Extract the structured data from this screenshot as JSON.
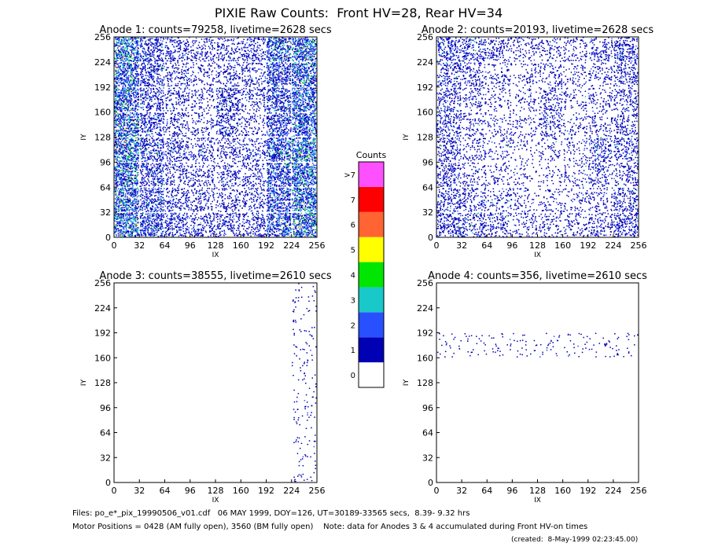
{
  "title": "PIXIE Raw Counts:  Front HV=28, Rear HV=34",
  "chart_data": [
    {
      "type": "heatmap",
      "title": "Anode 1: counts=79258, livetime=2628 secs",
      "x_label": "IX",
      "y_label": "IY",
      "xlim": [
        0,
        256
      ],
      "ylim": [
        0,
        256
      ],
      "xticks": [
        0,
        32,
        64,
        96,
        128,
        160,
        192,
        224,
        256
      ],
      "yticks": [
        0,
        32,
        64,
        96,
        128,
        160,
        192,
        224,
        256
      ],
      "values": [
        [
          1.6,
          0.7,
          0.4,
          0.3,
          0.3,
          0.4,
          1.2,
          1.6
        ],
        [
          1.5,
          0.6,
          0.3,
          0.2,
          0.3,
          0.3,
          0.9,
          1.4
        ],
        [
          1.4,
          0.5,
          0.3,
          0.2,
          0.6,
          0.3,
          0.8,
          1.3
        ],
        [
          1.5,
          0.6,
          0.3,
          0.2,
          0.5,
          0.2,
          0.8,
          1.4
        ],
        [
          1.6,
          0.7,
          0.4,
          0.3,
          0.3,
          0.3,
          1.2,
          1.8
        ],
        [
          1.5,
          0.6,
          0.3,
          0.3,
          0.3,
          0.3,
          1.0,
          1.5
        ],
        [
          1.5,
          0.7,
          0.4,
          0.3,
          0.3,
          0.3,
          1.0,
          1.5
        ],
        [
          1.8,
          0.9,
          0.5,
          0.4,
          0.4,
          0.4,
          1.1,
          1.6
        ]
      ]
    },
    {
      "type": "heatmap",
      "title": "Anode 2: counts=20193, livetime=2628 secs",
      "x_label": "IX",
      "y_label": "IY",
      "xlim": [
        0,
        256
      ],
      "ylim": [
        0,
        256
      ],
      "xticks": [
        0,
        32,
        64,
        96,
        128,
        160,
        192,
        224,
        256
      ],
      "yticks": [
        0,
        32,
        64,
        96,
        128,
        160,
        192,
        224,
        256
      ],
      "values": [
        [
          0.5,
          0.4,
          0.3,
          0.2,
          0.2,
          0.2,
          0.3,
          0.5
        ],
        [
          0.4,
          0.3,
          0.2,
          0.15,
          0.2,
          0.15,
          0.2,
          0.4
        ],
        [
          0.4,
          0.2,
          0.15,
          0.15,
          0.3,
          0.15,
          0.2,
          0.3
        ],
        [
          0.4,
          0.2,
          0.15,
          0.15,
          0.3,
          0.15,
          0.2,
          0.3
        ],
        [
          0.4,
          0.2,
          0.15,
          0.1,
          0.15,
          0.15,
          0.4,
          0.4
        ],
        [
          0.4,
          0.2,
          0.15,
          0.1,
          0.1,
          0.15,
          0.3,
          0.3
        ],
        [
          0.4,
          0.3,
          0.2,
          0.15,
          0.15,
          0.15,
          0.2,
          0.4
        ],
        [
          0.5,
          0.4,
          0.3,
          0.2,
          0.2,
          0.2,
          0.3,
          0.5
        ]
      ]
    },
    {
      "type": "heatmap",
      "title": "Anode 3: counts=38555, livetime=2610 secs",
      "x_label": "IX",
      "y_label": "IY",
      "xlim": [
        0,
        256
      ],
      "ylim": [
        0,
        256
      ],
      "xticks": [
        0,
        32,
        64,
        96,
        128,
        160,
        192,
        224,
        256
      ],
      "yticks": [
        0,
        32,
        64,
        96,
        128,
        160,
        192,
        224,
        256
      ],
      "values": [
        [
          0,
          0,
          0,
          0,
          0,
          0,
          0,
          0.05
        ],
        [
          0,
          0,
          0,
          0,
          0,
          0,
          0,
          0.05
        ],
        [
          0,
          0,
          0,
          0,
          0,
          0,
          0,
          0.05
        ],
        [
          0,
          0,
          0,
          0,
          0,
          0,
          0,
          0.05
        ],
        [
          0,
          0,
          0,
          0,
          0,
          0,
          0,
          0.05
        ],
        [
          0,
          0,
          0,
          0,
          0,
          0,
          0,
          0.05
        ],
        [
          0,
          0,
          0,
          0,
          0,
          0,
          0,
          0.05
        ],
        [
          0,
          0,
          0,
          0,
          0,
          0,
          0,
          0.05
        ]
      ]
    },
    {
      "type": "heatmap",
      "title": "Anode 4: counts=356, livetime=2610 secs",
      "x_label": "IX",
      "y_label": "IY",
      "xlim": [
        0,
        256
      ],
      "ylim": [
        0,
        256
      ],
      "xticks": [
        0,
        32,
        64,
        96,
        128,
        160,
        192,
        224,
        256
      ],
      "yticks": [
        0,
        32,
        64,
        96,
        128,
        160,
        192,
        224,
        256
      ],
      "values": [
        [
          0,
          0,
          0,
          0,
          0,
          0,
          0,
          0
        ],
        [
          0,
          0,
          0,
          0,
          0,
          0,
          0,
          0
        ],
        [
          0.05,
          0.05,
          0.05,
          0.05,
          0.05,
          0.05,
          0.05,
          0.05
        ],
        [
          0,
          0,
          0,
          0,
          0,
          0,
          0,
          0
        ],
        [
          0,
          0,
          0,
          0,
          0,
          0,
          0,
          0
        ],
        [
          0,
          0,
          0,
          0,
          0,
          0,
          0,
          0
        ],
        [
          0,
          0,
          0,
          0,
          0,
          0,
          0,
          0
        ],
        [
          0,
          0,
          0,
          0,
          0,
          0,
          0,
          0
        ]
      ]
    }
  ],
  "colorbar": {
    "title": "Counts",
    "ticks": [
      0,
      1,
      2,
      3,
      4,
      5,
      6,
      7,
      {
        "value": 8,
        "label": ">7"
      }
    ],
    "colors": [
      "#ffffff",
      "#0000b4",
      "#2850ff",
      "#19c8c8",
      "#00e600",
      "#ffff00",
      "#ff6432",
      "#ff0000",
      "#ff50ff"
    ]
  },
  "footer": [
    "Files: po_e*_pix_19990506_v01.cdf   06 MAY 1999, DOY=126, UT=30189-33565 secs,  8.39- 9.32 hrs",
    "Motor Positions = 0428 (AM fully open), 3560 (BM fully open)    Note: data for Anodes 3 & 4 accumulated during Front HV-on times",
    "(created:  8-May-1999 02:23:45.00)"
  ]
}
